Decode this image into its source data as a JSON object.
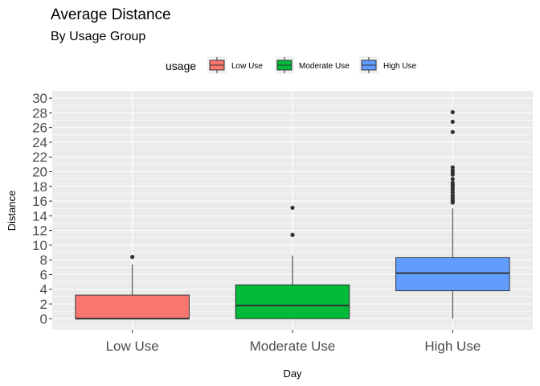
{
  "chart_data": {
    "type": "boxplot",
    "title": "Average Distance",
    "subtitle": "By Usage Group",
    "xlabel": "Day",
    "ylabel": "Distance",
    "ylim": [
      -1.5,
      31
    ],
    "yticks": [
      0,
      2,
      4,
      6,
      8,
      10,
      12,
      14,
      16,
      18,
      20,
      22,
      24,
      26,
      28,
      30
    ],
    "grid": true,
    "legend": {
      "title": "usage",
      "position": "top",
      "entries": [
        {
          "label": "Low Use",
          "color": "#F8766D"
        },
        {
          "label": "Moderate Use",
          "color": "#00BA38"
        },
        {
          "label": "High Use",
          "color": "#619CFF"
        }
      ]
    },
    "categories": [
      "Low Use",
      "Moderate Use",
      "High Use"
    ],
    "boxes": [
      {
        "category": "Low Use",
        "color": "#F8766D",
        "min": 0,
        "q1": 0,
        "median": 0,
        "q3": 3.2,
        "max": 7.4,
        "outliers": [
          8.4
        ]
      },
      {
        "category": "Moderate Use",
        "color": "#00BA38",
        "min": 0,
        "q1": 0,
        "median": 1.8,
        "q3": 4.6,
        "max": 8.6,
        "outliers": [
          11.4,
          15.1
        ]
      },
      {
        "category": "High Use",
        "color": "#619CFF",
        "min": 0,
        "q1": 3.8,
        "median": 6.2,
        "q3": 8.3,
        "max": 15.0,
        "outliers": [
          15.8,
          16.0,
          16.2,
          16.5,
          16.8,
          17.2,
          17.6,
          17.9,
          18.2,
          18.5,
          19.0,
          19.6,
          19.9,
          20.2,
          20.6,
          25.4,
          26.8,
          28.1
        ]
      }
    ]
  }
}
